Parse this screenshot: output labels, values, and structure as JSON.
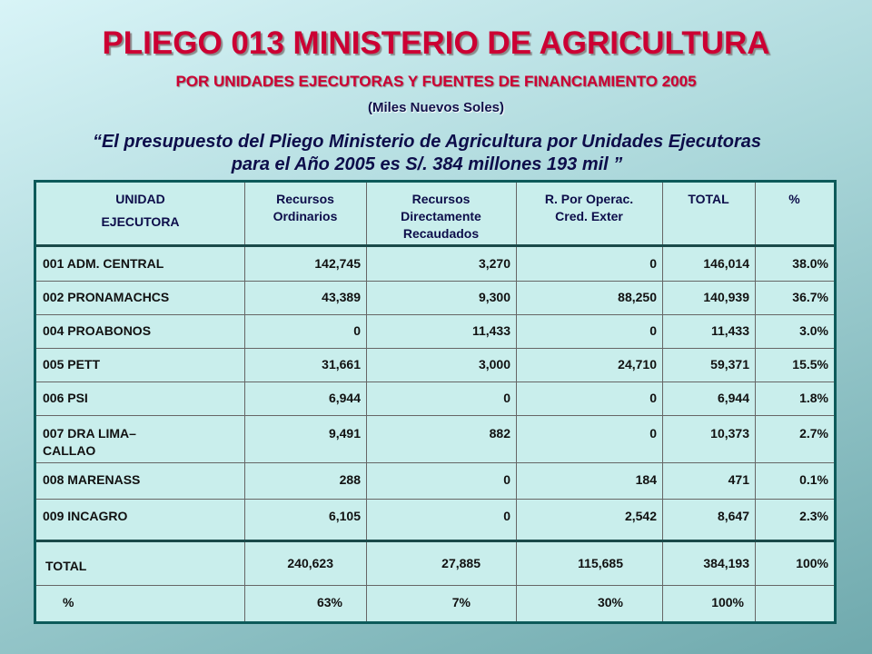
{
  "title": "PLIEGO 013 MINISTERIO DE AGRICULTURA",
  "subtitle": "POR UNIDADES EJECUTORAS Y FUENTES DE FINANCIAMIENTO 2005",
  "units": "(Miles Nuevos Soles)",
  "quote": {
    "line1": "“El presupuesto del Pliego Ministerio de Agricultura por Unidades Ejecutoras",
    "line2": "para  el Año 2005 es S/. 384 millones 193 mil ”"
  },
  "table": {
    "headers": {
      "unidad_1": "UNIDAD",
      "unidad_2": "EJECUTORA",
      "ro_1": "Recursos",
      "ro_2": "Ordinarios",
      "rdr_1": "Recursos",
      "rdr_2": "Directamente",
      "rdr_3": "Recaudados",
      "roce_1": "R. Por Operac.",
      "roce_2": "Cred. Exter",
      "total": "TOTAL",
      "pct": "%"
    },
    "rows": [
      {
        "name": "001 ADM. CENTRAL",
        "ro": "142,745",
        "rdr": "3,270",
        "roce": "0",
        "total": "146,014",
        "pct": "38.0%"
      },
      {
        "name": "002 PRONAMACHCS",
        "ro": "43,389",
        "rdr": "9,300",
        "roce": "88,250",
        "total": "140,939",
        "pct": "36.7%"
      },
      {
        "name": "004 PROABONOS",
        "ro": "0",
        "rdr": "11,433",
        "roce": "0",
        "total": "11,433",
        "pct": "3.0%"
      },
      {
        "name": "005 PETT",
        "ro": "31,661",
        "rdr": "3,000",
        "roce": "24,710",
        "total": "59,371",
        "pct": "15.5%"
      },
      {
        "name": "006 PSI",
        "ro": "6,944",
        "rdr": "0",
        "roce": "0",
        "total": "6,944",
        "pct": "1.8%"
      },
      {
        "name_1": "007 DRA LIMA–",
        "name_2": "CALLAO",
        "ro": "9,491",
        "rdr": "882",
        "roce": "0",
        "total": "10,373",
        "pct": "2.7%"
      },
      {
        "name": "008 MARENASS",
        "ro": "288",
        "rdr": "0",
        "roce": "184",
        "total": "471",
        "pct": "0.1%"
      },
      {
        "name": "009 INCAGRO",
        "ro": "6,105",
        "rdr": "0",
        "roce": "2,542",
        "total": "8,647",
        "pct": "2.3%"
      }
    ],
    "total_row": {
      "label": "TOTAL",
      "ro": "240,623",
      "rdr": "27,885",
      "roce": "115,685",
      "total": "384,193",
      "pct": "100%"
    },
    "pct_row": {
      "label": "%",
      "ro": "63%",
      "rdr": "7%",
      "roce": "30%",
      "total": "100%"
    }
  }
}
